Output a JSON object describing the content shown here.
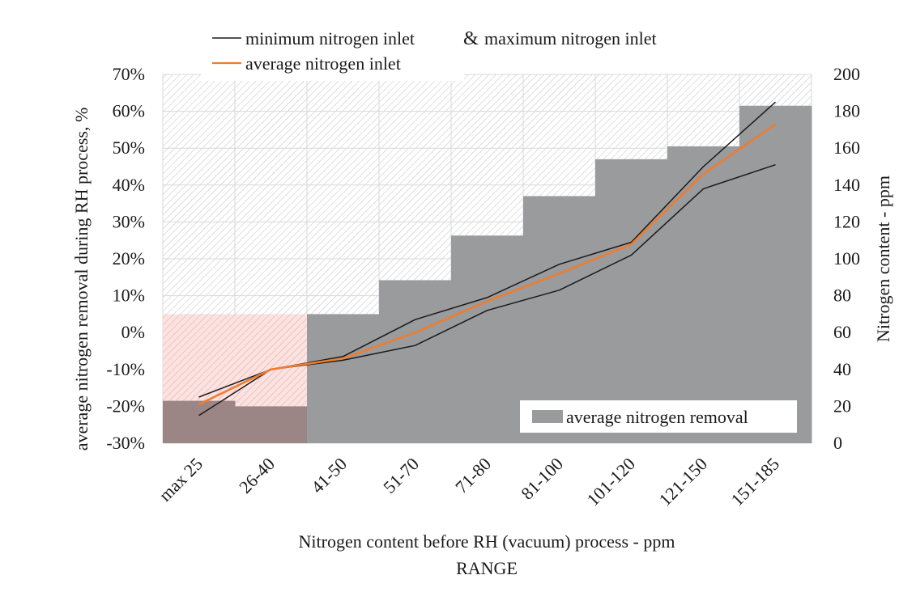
{
  "chart_data": {
    "type": "bar+line",
    "categories": [
      "max 25",
      "26-40",
      "41-50",
      "51-70",
      "71-80",
      "81-100",
      "101-120",
      "121-150",
      "151-185"
    ],
    "bar_series": {
      "name": "average nitrogen removal",
      "axis": "left",
      "values": [
        -18.5,
        -20.0,
        5.0,
        14.2,
        26.3,
        37.0,
        47.0,
        50.5,
        61.5
      ],
      "color": "#999b9d"
    },
    "line_series": [
      {
        "name": "minimum nitrogen inlet",
        "axis": "right",
        "values": [
          15,
          40,
          45,
          53,
          72,
          83,
          102,
          138,
          151
        ],
        "color": "#1a1a1a"
      },
      {
        "name": "maximum nitrogen inlet",
        "axis": "right",
        "values": [
          25,
          40,
          47,
          67,
          79,
          97,
          109,
          150,
          185
        ],
        "color": "#1a1a1a"
      },
      {
        "name": "average nitrogen inlet",
        "axis": "right",
        "values": [
          21,
          40,
          46,
          60,
          77,
          92,
          108,
          146,
          173
        ],
        "color": "#ed7d31"
      }
    ],
    "left_axis": {
      "title": "average nitrogen removal during RH process, %",
      "ylim": [
        -30,
        70
      ],
      "ticks": [
        "-30%",
        "-20%",
        "-10%",
        "0%",
        "10%",
        "20%",
        "30%",
        "40%",
        "50%",
        "60%",
        "70%"
      ]
    },
    "right_axis": {
      "title": "Nitrogen content - ppm",
      "ylim": [
        0,
        200
      ],
      "ticks": [
        "0",
        "20",
        "40",
        "60",
        "80",
        "100",
        "120",
        "140",
        "160",
        "180",
        "200"
      ]
    },
    "xlabel": "Nitrogen content before RH (vacuum) process - ppm",
    "xlabel2": "RANGE",
    "highlight": {
      "from_category": "max 25",
      "to_category": "26-40",
      "ymin": -20,
      "ymax": 5,
      "color": "#f4b6b4"
    },
    "legend": {
      "line_entry_1a": "minimum nitrogen inlet",
      "ampersand": "&",
      "line_entry_1b": "maximum nitrogen inlet",
      "line_entry_2": "average nitrogen inlet",
      "bar_entry": "average nitrogen removal"
    },
    "grid": true
  }
}
